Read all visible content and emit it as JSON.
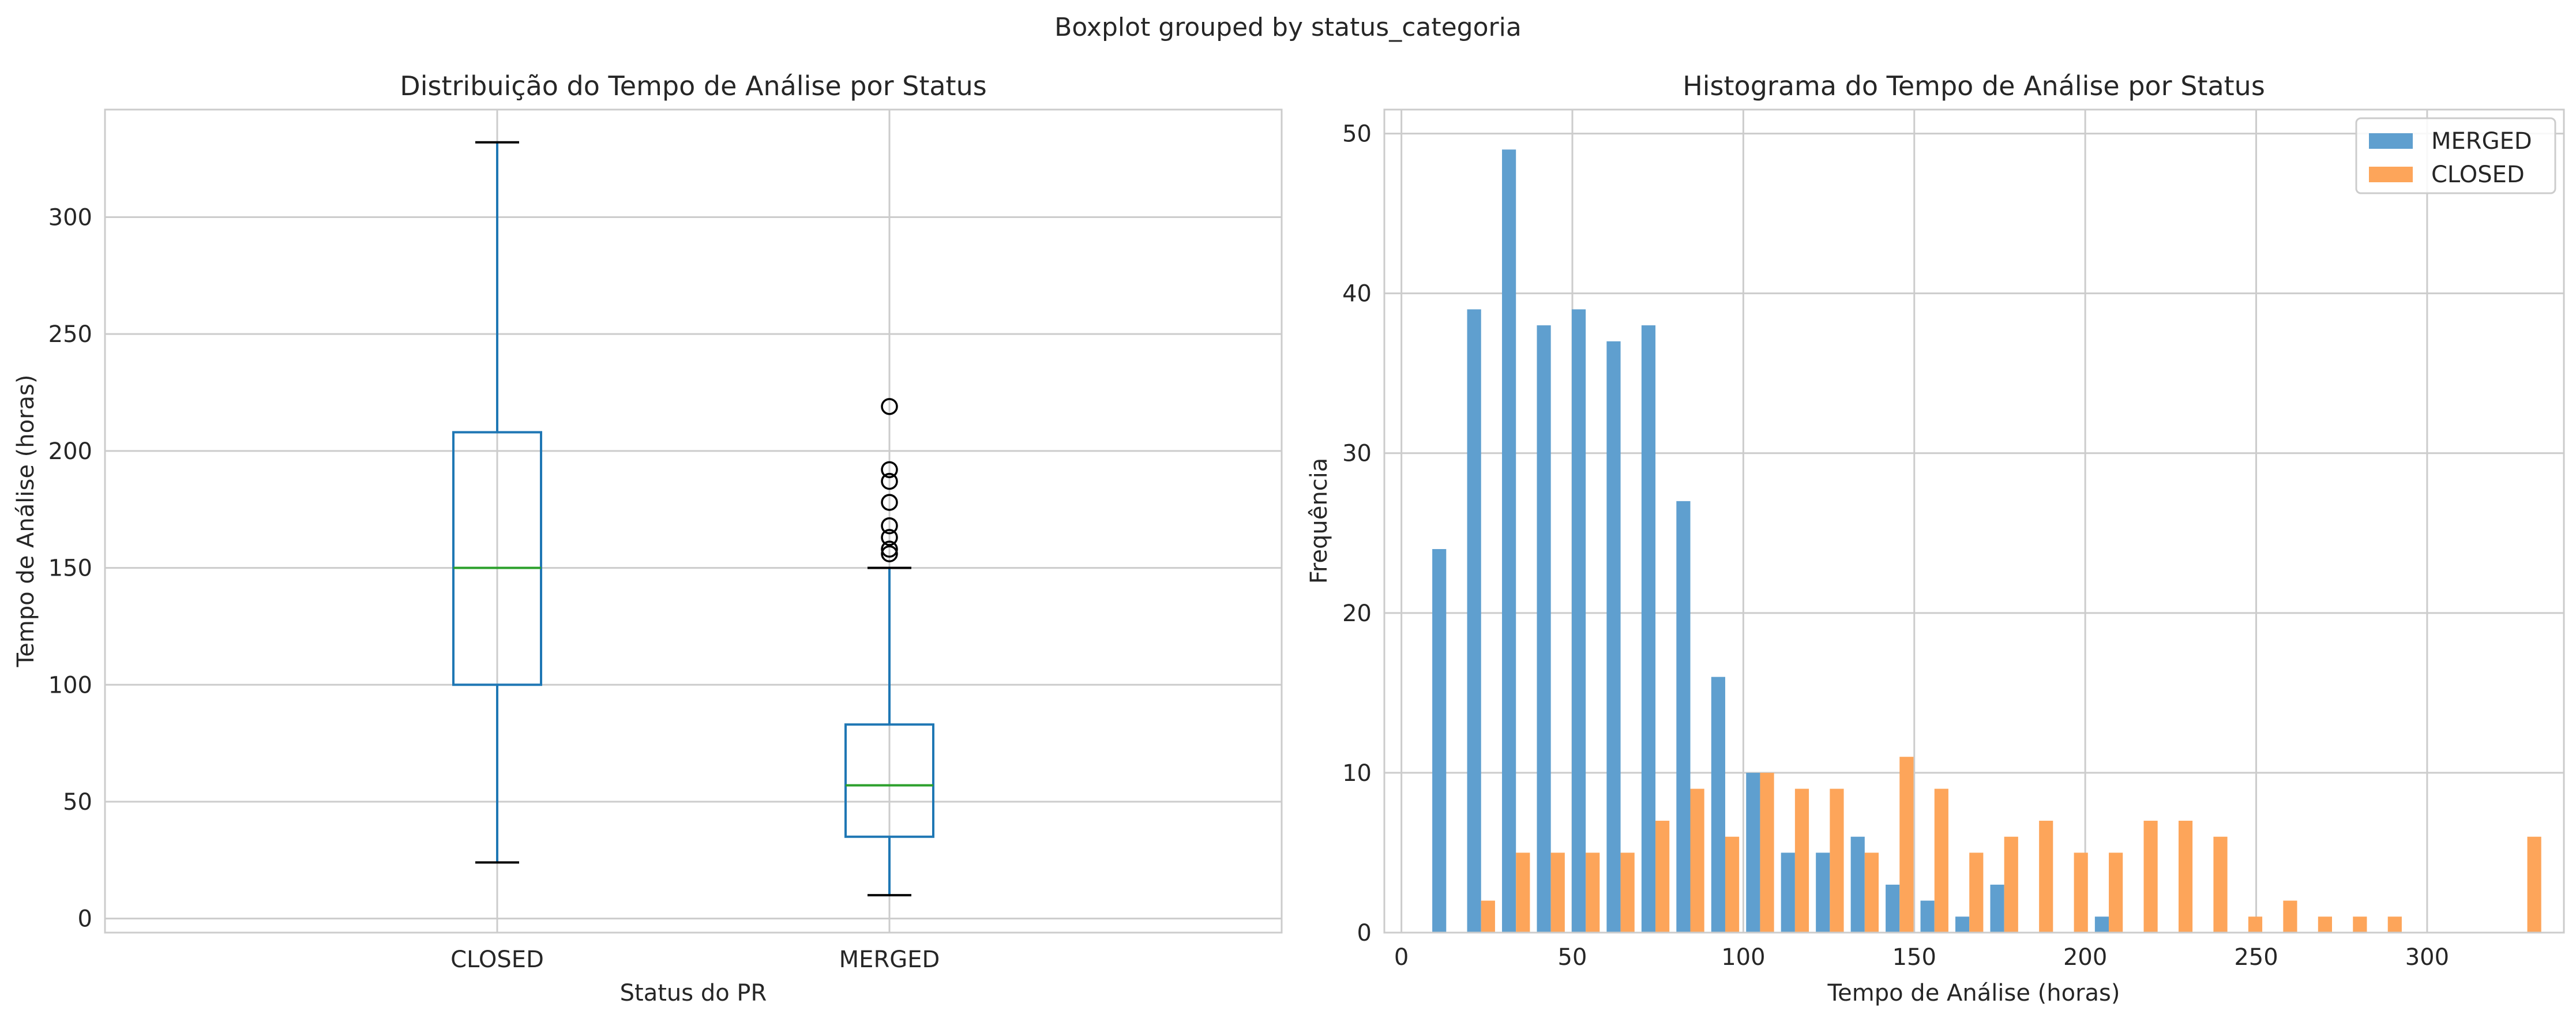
{
  "suptitle": "Boxplot grouped by status_categoria",
  "colors": {
    "box": "#1f77b4",
    "median": "#2ca02c",
    "whisker": "#1f77b4",
    "cap": "#000000",
    "flier": "#000000",
    "grid": "#cccccc",
    "spine": "#cccccc",
    "merged": "#5f9fcf",
    "closed": "#fda55a"
  },
  "chart_data": [
    {
      "type": "boxplot",
      "title": "Distribuição do Tempo de Análise por Status",
      "xlabel": "Status do PR",
      "ylabel": "Tempo de Análise (horas)",
      "ylim": [
        -6,
        346
      ],
      "yticks": [
        0,
        50,
        100,
        150,
        200,
        250,
        300
      ],
      "grid": true,
      "categories": [
        "CLOSED",
        "MERGED"
      ],
      "boxes": [
        {
          "name": "CLOSED",
          "whislo": 24,
          "q1": 100,
          "med": 150,
          "q3": 208,
          "whishi": 332,
          "fliers": []
        },
        {
          "name": "MERGED",
          "whislo": 10,
          "q1": 35,
          "med": 57,
          "q3": 83,
          "whishi": 150,
          "fliers": [
            156,
            158,
            163,
            168,
            178,
            187,
            192,
            219
          ]
        }
      ]
    },
    {
      "type": "bar",
      "title": "Histograma do Tempo de Análise por Status",
      "xlabel": "Tempo de Análise (horas)",
      "ylabel": "Frequência",
      "xlim": [
        -5,
        340
      ],
      "ylim": [
        0,
        51.5
      ],
      "xticks": [
        0,
        50,
        100,
        150,
        200,
        250,
        300
      ],
      "yticks": [
        0,
        10,
        20,
        30,
        40,
        50
      ],
      "grid": true,
      "legend": "top-right",
      "bin_edges": [
        8.0,
        18.2,
        28.4,
        38.6,
        48.8,
        59.0,
        69.2,
        79.4,
        89.6,
        99.8,
        110.0,
        120.2,
        130.4,
        140.6,
        150.8,
        161.0,
        171.2,
        181.4,
        191.6,
        201.8,
        212.0,
        222.2,
        232.4,
        242.6,
        252.8,
        263.0,
        273.2,
        283.4,
        293.6,
        303.8,
        314.0,
        324.2,
        334.4
      ],
      "series": [
        {
          "name": "MERGED",
          "values": [
            24,
            39,
            49,
            38,
            39,
            37,
            38,
            27,
            16,
            10,
            5,
            5,
            6,
            3,
            2,
            1,
            3,
            0,
            0,
            1,
            0,
            0,
            0,
            0,
            0,
            0,
            0,
            0,
            0,
            0,
            0,
            0
          ]
        },
        {
          "name": "CLOSED",
          "values": [
            0,
            2,
            5,
            5,
            5,
            5,
            7,
            9,
            6,
            10,
            9,
            9,
            5,
            11,
            9,
            5,
            6,
            7,
            5,
            5,
            7,
            7,
            6,
            1,
            2,
            1,
            1,
            1,
            0,
            0,
            0,
            6
          ]
        }
      ]
    }
  ]
}
